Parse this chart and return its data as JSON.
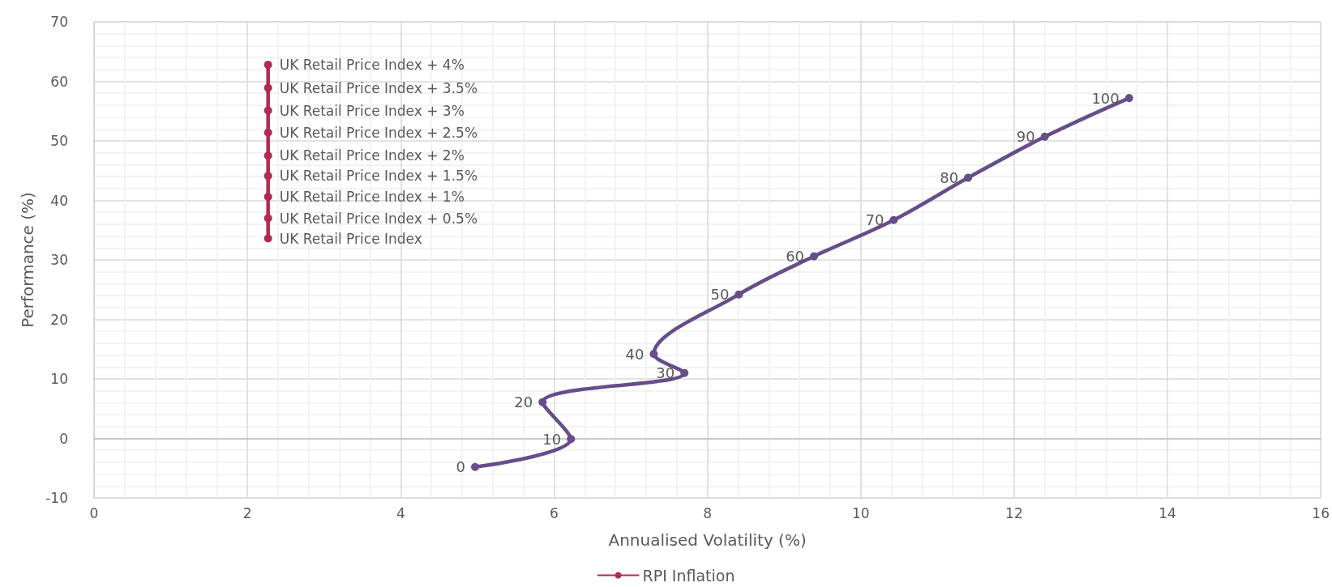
{
  "chart_data": {
    "type": "line",
    "xlabel": "Annualised Volatility (%)",
    "ylabel": "Performance (%)",
    "xlim": [
      0,
      16
    ],
    "xticks": [
      0,
      2,
      4,
      6,
      8,
      10,
      12,
      14,
      16
    ],
    "ylim": [
      -10,
      70
    ],
    "yticks": [
      -10,
      0,
      10,
      20,
      30,
      40,
      50,
      60,
      70
    ],
    "grid": true,
    "legend": "bottom",
    "marker": "circle",
    "line_style": "solid",
    "series": [
      {
        "color": "#654e8a",
        "x": [
          4.97,
          6.22,
          5.85,
          7.7,
          7.3,
          8.41,
          9.39,
          10.43,
          11.4,
          12.4,
          13.5
        ],
        "values": [
          -4.8,
          -0.1,
          6.1,
          11.0,
          14.2,
          24.2,
          30.6,
          36.7,
          43.8,
          50.7,
          57.2
        ]
      },
      {
        "name": "RPI Inflation",
        "color": "#b22a50",
        "x": [
          2.27,
          2.27,
          2.27,
          2.27,
          2.27,
          2.27,
          2.27,
          2.27,
          2.27
        ],
        "values": [
          62.8,
          58.9,
          55.1,
          51.4,
          47.5,
          44.1,
          40.6,
          37.0,
          33.6
        ]
      }
    ],
    "annotations": [
      {
        "text": "0",
        "x": 4.97,
        "y": -4.8
      },
      {
        "text": "10",
        "x": 6.22,
        "y": -0.1
      },
      {
        "text": "20",
        "x": 5.85,
        "y": 6.1
      },
      {
        "text": "30",
        "x": 7.7,
        "y": 11.0
      },
      {
        "text": "40",
        "x": 7.3,
        "y": 14.2
      },
      {
        "text": "50",
        "x": 8.41,
        "y": 24.2
      },
      {
        "text": "60",
        "x": 9.39,
        "y": 30.6
      },
      {
        "text": "70",
        "x": 10.43,
        "y": 36.7
      },
      {
        "text": "80",
        "x": 11.4,
        "y": 43.8
      },
      {
        "text": "90",
        "x": 12.4,
        "y": 50.7
      },
      {
        "text": "100",
        "x": 13.5,
        "y": 57.2
      },
      {
        "text": "UK Retail Price Index + 4%",
        "x": 2.27,
        "y": 62.8
      },
      {
        "text": "UK Retail Price Index + 3.5%",
        "x": 2.27,
        "y": 58.9
      },
      {
        "text": "UK Retail Price Index + 3%",
        "x": 2.27,
        "y": 55.1
      },
      {
        "text": "UK Retail Price Index + 2.5%",
        "x": 2.27,
        "y": 51.4
      },
      {
        "text": "UK Retail Price Index + 2%",
        "x": 2.27,
        "y": 47.5
      },
      {
        "text": "UK Retail Price Index + 1.5%",
        "x": 2.27,
        "y": 44.1
      },
      {
        "text": "UK Retail Price Index + 1%",
        "x": 2.27,
        "y": 40.6
      },
      {
        "text": "UK Retail Price Index + 0.5%",
        "x": 2.27,
        "y": 37.0
      },
      {
        "text": "UK Retail Price Index",
        "x": 2.27,
        "y": 33.6
      }
    ]
  }
}
